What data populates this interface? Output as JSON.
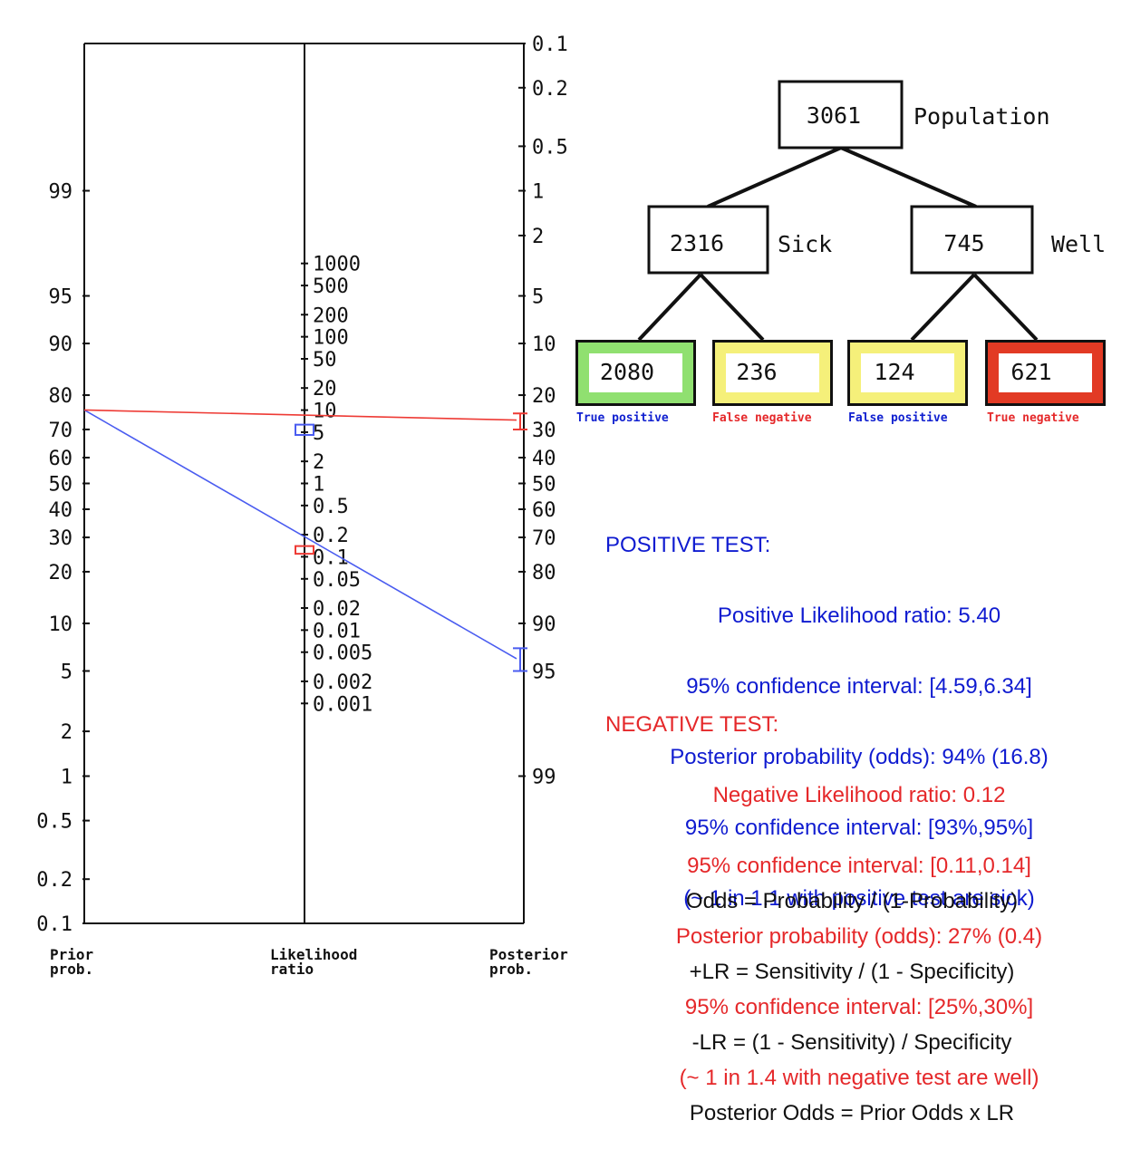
{
  "nomogram": {
    "prior_axis": {
      "ticks": [
        "0.1",
        "0.2",
        "0.5",
        "1",
        "2",
        "5",
        "10",
        "20",
        "30",
        "40",
        "50",
        "60",
        "70",
        "80",
        "90",
        "95",
        "99"
      ],
      "caption_line1": "Prior",
      "caption_line2": "prob."
    },
    "lr_axis": {
      "ticks": [
        "1000",
        "500",
        "200",
        "100",
        "50",
        "20",
        "10",
        "5",
        "2",
        "1",
        "0.5",
        "0.2",
        "0.1",
        "0.05",
        "0.02",
        "0.01",
        "0.005",
        "0.002",
        "0.001"
      ],
      "caption_line1": "Likelihood",
      "caption_line2": "ratio"
    },
    "posterior_axis": {
      "ticks": [
        "99",
        "95",
        "90",
        "80",
        "70",
        "60",
        "50",
        "40",
        "30",
        "20",
        "10",
        "5",
        "2",
        "1",
        "0.5",
        "0.2",
        "0.1"
      ],
      "caption_line1": "Posterior",
      "caption_line2": "prob."
    },
    "lines": {
      "positive": {
        "prior_percent": 76,
        "likelihood_ratio": 5.4,
        "ci_low": 4.59,
        "ci_high": 6.34,
        "posterior_percent": 94,
        "posterior_ci": [
          93,
          95
        ],
        "color": "#4a5cf0"
      },
      "negative": {
        "prior_percent": 76,
        "likelihood_ratio": 0.12,
        "ci_low": 0.11,
        "ci_high": 0.14,
        "posterior_percent": 27,
        "posterior_ci": [
          25,
          30
        ],
        "color": "#ee3a34"
      }
    }
  },
  "tree": {
    "root": {
      "value": "3061",
      "label": "Population"
    },
    "sick": {
      "value": "2316",
      "label": "Sick"
    },
    "well": {
      "value": "745",
      "label": "Well"
    },
    "leaves": [
      {
        "value": "2080",
        "caption": "True positive",
        "border_color": "#90e070",
        "caption_color": "#1020d0"
      },
      {
        "value": "236",
        "caption": "False negative",
        "border_color": "#f5f07a",
        "caption_color": "#e5282a"
      },
      {
        "value": "124",
        "caption": "False positive",
        "border_color": "#f5f07a",
        "caption_color": "#1020d0"
      },
      {
        "value": "621",
        "caption": "True negative",
        "border_color": "#e23a24",
        "caption_color": "#e5282a"
      }
    ]
  },
  "positive_test": {
    "heading": "POSITIVE TEST:",
    "lr_line": "Positive Likelihood ratio: 5.40",
    "lr_ci_line": "95% confidence interval: [4.59,6.34]",
    "post_line": "Posterior probability (odds): 94% (16.8)",
    "post_ci_line": "95% confidence interval: [93%,95%]",
    "summary_line": "(~ 1 in 1.1 with positive test are sick)"
  },
  "negative_test": {
    "heading": "NEGATIVE TEST:",
    "lr_line": "Negative Likelihood ratio: 0.12",
    "lr_ci_line": "95% confidence interval: [0.11,0.14]",
    "post_line": "Posterior probability (odds): 27% (0.4)",
    "post_ci_line": "95% confidence interval: [25%,30%]",
    "summary_line": "(~ 1 in 1.4 with negative test are well)"
  },
  "formulas": {
    "line1": "Odds = Probability / (1-Probability)",
    "line2": "+LR = Sensitivity / (1 - Specificity)",
    "line3": "-LR = (1 - Sensitivity) / Specificity",
    "line4": "Posterior Odds = Prior Odds x LR"
  }
}
